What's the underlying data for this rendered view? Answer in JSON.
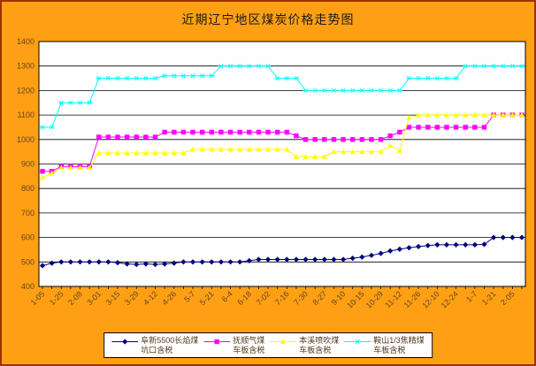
{
  "chart": {
    "background_color": "#FFA014",
    "plot_background": "#FFFFFF",
    "border_color": "#993300",
    "axis_label_color": "#5e4520",
    "grid_color": "#000000"
  },
  "chart_data": {
    "type": "line",
    "title": "近期辽宁地区煤炭价格走势图",
    "xlabel": "",
    "ylabel": "",
    "ylim": [
      400,
      1400
    ],
    "y_tick_step": 100,
    "grid": true,
    "legend_position": "bottom",
    "label_every_n_points": 2,
    "x_tick_labels": [
      "1-05",
      "1-25",
      "2-08",
      "3-01",
      "3-15",
      "3-29",
      "4-12",
      "4-26",
      "5-7",
      "5-21",
      "6-4",
      "6-18",
      "7-02",
      "7-16",
      "7-30",
      "8-27",
      "9-10",
      "10-15",
      "10-29",
      "11-12",
      "11-26",
      "12-10",
      "12-24",
      "1-7",
      "1-21",
      "2-05"
    ],
    "series": [
      {
        "name": "阜新5500长焰煤 坑口含税",
        "legend_line1": "阜新5500长焰煤",
        "legend_line2": "坑口含税",
        "color": "#000080",
        "marker": "diamond",
        "values": [
          485,
          495,
          500,
          500,
          500,
          500,
          500,
          500,
          497,
          492,
          490,
          492,
          490,
          492,
          495,
          500,
          500,
          500,
          500,
          500,
          500,
          500,
          505,
          510,
          510,
          510,
          510,
          510,
          510,
          510,
          510,
          510,
          510,
          515,
          520,
          527,
          535,
          545,
          552,
          558,
          563,
          567,
          570,
          570,
          570,
          570,
          570,
          572,
          600,
          600,
          600,
          600
        ]
      },
      {
        "name": "抚顺气煤 车板含税",
        "legend_line1": "抚顺气煤",
        "legend_line2": "车板含税",
        "color": "#FF00FF",
        "marker": "square",
        "values": [
          870,
          870,
          890,
          890,
          890,
          890,
          1010,
          1010,
          1010,
          1010,
          1010,
          1010,
          1010,
          1030,
          1030,
          1030,
          1030,
          1030,
          1030,
          1030,
          1030,
          1030,
          1030,
          1030,
          1030,
          1030,
          1030,
          1015,
          1000,
          1000,
          1000,
          1000,
          1000,
          1000,
          1000,
          1000,
          1000,
          1015,
          1030,
          1050,
          1050,
          1050,
          1050,
          1050,
          1050,
          1050,
          1050,
          1050,
          1100,
          1100,
          1100,
          1100
        ]
      },
      {
        "name": "本溪喷吹煤 车板含税",
        "legend_line1": "本溪喷吹煤",
        "legend_line2": "车板含税",
        "color": "#FFFF00",
        "marker": "triangle",
        "values": [
          845,
          862,
          885,
          885,
          885,
          885,
          945,
          945,
          945,
          945,
          945,
          945,
          945,
          945,
          945,
          945,
          960,
          960,
          960,
          960,
          960,
          960,
          960,
          960,
          960,
          960,
          960,
          930,
          930,
          930,
          930,
          950,
          950,
          950,
          950,
          950,
          950,
          975,
          955,
          1090,
          1100,
          1100,
          1100,
          1100,
          1100,
          1100,
          1100,
          1100,
          1100,
          1100,
          1100,
          1100
        ]
      },
      {
        "name": "鞍山1/3焦精煤 车板含税",
        "legend_line1": "鞍山1/3焦精煤",
        "legend_line2": "车板含税",
        "color": "#00FFFF",
        "marker": "star",
        "values": [
          1050,
          1050,
          1150,
          1150,
          1150,
          1150,
          1250,
          1250,
          1250,
          1250,
          1250,
          1250,
          1250,
          1260,
          1260,
          1260,
          1260,
          1260,
          1260,
          1300,
          1300,
          1300,
          1300,
          1300,
          1300,
          1250,
          1250,
          1250,
          1200,
          1200,
          1200,
          1200,
          1200,
          1200,
          1200,
          1200,
          1200,
          1200,
          1200,
          1250,
          1250,
          1250,
          1250,
          1250,
          1250,
          1300,
          1300,
          1300,
          1300,
          1300,
          1300,
          1300
        ]
      }
    ]
  }
}
